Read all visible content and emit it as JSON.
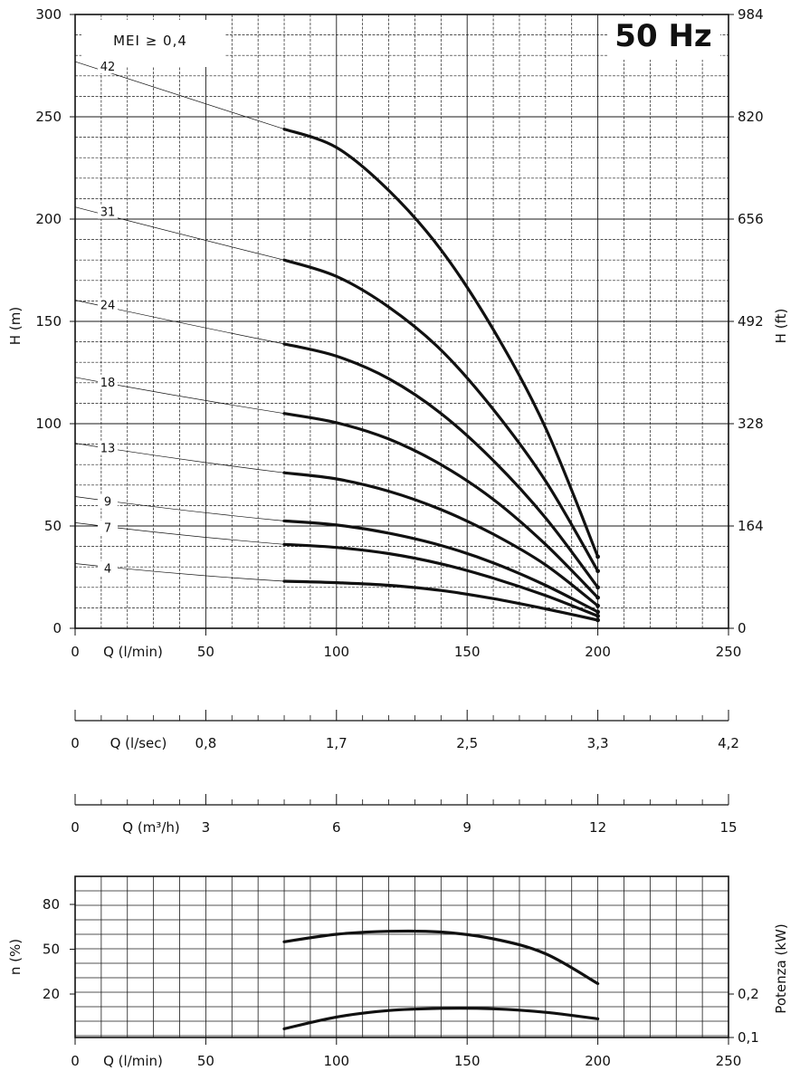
{
  "colors": {
    "ink": "#111111",
    "grid": "#1a1a1a",
    "background": "#ffffff"
  },
  "chart_data": [
    {
      "id": "head",
      "type": "line",
      "title": "50 Hz",
      "badge": "MEI ≥ 0,4",
      "xlabel": "Q (l/min)",
      "ylabel": "H (m)",
      "y2label": "H (ft)",
      "xlim": [
        0,
        250
      ],
      "ylim": [
        0,
        300
      ],
      "x_ticks": [
        "0",
        "50",
        "100",
        "150",
        "200",
        "250"
      ],
      "y_ticks": [
        "0",
        "50",
        "100",
        "150",
        "200",
        "250",
        "300"
      ],
      "y2_ticks": [
        "0",
        "164",
        "328",
        "492",
        "656",
        "820",
        "984"
      ],
      "series": [
        {
          "name": "4",
          "x": [
            80,
            100,
            120,
            140,
            160,
            180,
            200
          ],
          "y": [
            23,
            22.3,
            21,
            18.5,
            14.5,
            9.5,
            4
          ]
        },
        {
          "name": "7",
          "x": [
            80,
            100,
            120,
            140,
            160,
            180,
            200
          ],
          "y": [
            41,
            39.5,
            36.5,
            31.5,
            24.5,
            16,
            6
          ]
        },
        {
          "name": "9",
          "x": [
            80,
            100,
            120,
            140,
            160,
            180,
            200
          ],
          "y": [
            52.5,
            50.5,
            46.5,
            40.5,
            32,
            21,
            8
          ]
        },
        {
          "name": "13",
          "x": [
            80,
            100,
            120,
            140,
            160,
            180,
            200
          ],
          "y": [
            76,
            73,
            67,
            58,
            46,
            31,
            11
          ]
        },
        {
          "name": "18",
          "x": [
            80,
            100,
            120,
            140,
            160,
            180,
            200
          ],
          "y": [
            105,
            100.5,
            92.5,
            80,
            63,
            41,
            15
          ]
        },
        {
          "name": "24",
          "x": [
            80,
            100,
            120,
            140,
            160,
            180,
            200
          ],
          "y": [
            139,
            133,
            122,
            105,
            82,
            54,
            20
          ]
        },
        {
          "name": "31",
          "x": [
            80,
            100,
            120,
            140,
            160,
            180,
            200
          ],
          "y": [
            180,
            172,
            157,
            136,
            107,
            72,
            28
          ]
        },
        {
          "name": "42",
          "x": [
            80,
            100,
            120,
            140,
            160,
            180,
            200
          ],
          "y": [
            244,
            235,
            214,
            185,
            146,
            98,
            35
          ]
        }
      ]
    },
    {
      "id": "flow-ls",
      "type": "axis",
      "label": "Q (l/sec)",
      "ticks": [
        "0",
        "0,8",
        "1,7",
        "2,5",
        "3,3",
        "4,2"
      ]
    },
    {
      "id": "flow-m3h",
      "type": "axis",
      "label": "Q (m³/h)",
      "ticks": [
        "0",
        "3",
        "6",
        "9",
        "12",
        "15"
      ]
    },
    {
      "id": "efficiency-power",
      "type": "line",
      "xlabel": "Q (l/min)",
      "ylabel": "n (%)",
      "y2label": "Potenza (kW)",
      "xlim": [
        0,
        250
      ],
      "x_ticks": [
        "0",
        "50",
        "100",
        "150",
        "200",
        "250"
      ],
      "y_ticks": [
        "20",
        "50",
        "80"
      ],
      "y2_ticks": [
        "0,1",
        "0,2"
      ],
      "series": [
        {
          "name": "n (%)",
          "axis": "left",
          "x": [
            80,
            100,
            120,
            140,
            160,
            180,
            200
          ],
          "y": [
            55,
            60,
            62,
            61.5,
            57,
            47,
            27
          ]
        },
        {
          "name": "Potenza (kW)",
          "axis": "right",
          "x": [
            80,
            100,
            120,
            140,
            160,
            180,
            200
          ],
          "y": [
            0.12,
            0.147,
            0.162,
            0.167,
            0.166,
            0.158,
            0.143
          ]
        }
      ]
    }
  ]
}
